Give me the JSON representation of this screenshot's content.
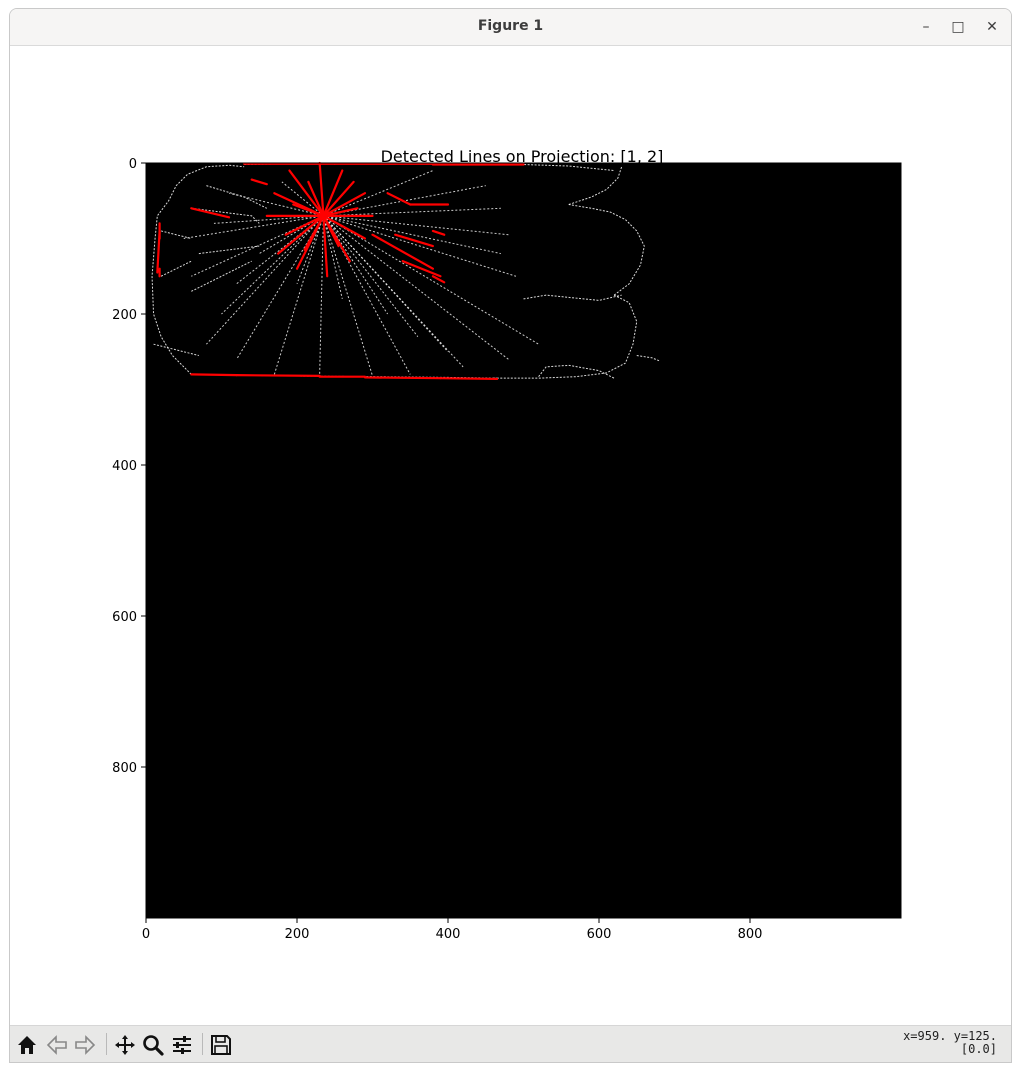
{
  "window": {
    "title": "Figure 1",
    "controls": {
      "minimize": "–",
      "maximize": "□",
      "close": "✕"
    }
  },
  "toolbar": {
    "buttons": [
      {
        "name": "home",
        "icon": "home-icon"
      },
      {
        "name": "back",
        "icon": "back-arrow-icon"
      },
      {
        "name": "forward",
        "icon": "forward-arrow-icon"
      },
      {
        "name": "pan",
        "icon": "pan-move-icon"
      },
      {
        "name": "zoom",
        "icon": "zoom-magnifier-icon"
      },
      {
        "name": "configure-subplots",
        "icon": "sliders-icon"
      },
      {
        "name": "save",
        "icon": "save-floppy-icon"
      }
    ],
    "coords_line1": "x=959. y=125.",
    "coords_line2": "[0.0]"
  },
  "chart_data": {
    "type": "image",
    "title": "Detected Lines on Projection: [1, 2]",
    "xlim": [
      0,
      1000
    ],
    "ylim": [
      1000,
      0
    ],
    "xticks": [
      "0",
      "200",
      "400",
      "600",
      "800"
    ],
    "yticks": [
      "0",
      "200",
      "400",
      "600",
      "800"
    ],
    "xtick_values": [
      0,
      200,
      400,
      600,
      800
    ],
    "ytick_values": [
      0,
      200,
      400,
      600,
      800
    ],
    "background_color": "#000000",
    "edge_color": "#ffffff",
    "line_color": "#ff0000",
    "edge_polylines": [
      [
        [
          60,
          280
        ],
        [
          50,
          270
        ],
        [
          35,
          255
        ],
        [
          20,
          230
        ],
        [
          10,
          200
        ],
        [
          8,
          150
        ],
        [
          12,
          100
        ],
        [
          15,
          70
        ],
        [
          30,
          50
        ],
        [
          40,
          30
        ],
        [
          55,
          15
        ],
        [
          80,
          5
        ],
        [
          110,
          3
        ],
        [
          130,
          5
        ]
      ],
      [
        [
          60,
          280
        ],
        [
          180,
          282
        ],
        [
          300,
          283
        ],
        [
          400,
          284
        ],
        [
          465,
          285
        ]
      ],
      [
        [
          130,
          2
        ],
        [
          250,
          0
        ],
        [
          380,
          0
        ],
        [
          500,
          2
        ],
        [
          560,
          4
        ],
        [
          620,
          10
        ]
      ],
      [
        [
          460,
          285
        ],
        [
          520,
          285
        ],
        [
          570,
          283
        ],
        [
          610,
          278
        ],
        [
          635,
          265
        ],
        [
          645,
          240
        ],
        [
          650,
          210
        ],
        [
          640,
          185
        ],
        [
          620,
          175
        ]
      ],
      [
        [
          620,
          175
        ],
        [
          640,
          160
        ],
        [
          655,
          135
        ],
        [
          660,
          110
        ],
        [
          650,
          90
        ],
        [
          635,
          75
        ],
        [
          615,
          65
        ],
        [
          590,
          60
        ],
        [
          560,
          55
        ]
      ],
      [
        [
          560,
          55
        ],
        [
          590,
          45
        ],
        [
          610,
          35
        ],
        [
          625,
          20
        ],
        [
          630,
          5
        ]
      ],
      [
        [
          500,
          180
        ],
        [
          530,
          175
        ],
        [
          560,
          178
        ],
        [
          600,
          182
        ],
        [
          630,
          175
        ]
      ],
      [
        [
          520,
          283
        ],
        [
          530,
          270
        ],
        [
          560,
          268
        ],
        [
          600,
          275
        ],
        [
          620,
          285
        ]
      ],
      [
        [
          650,
          255
        ],
        [
          670,
          258
        ],
        [
          680,
          262
        ]
      ],
      [
        [
          10,
          240
        ],
        [
          30,
          245
        ],
        [
          50,
          250
        ],
        [
          70,
          255
        ]
      ],
      [
        [
          60,
          60
        ],
        [
          100,
          65
        ],
        [
          140,
          70
        ],
        [
          150,
          80
        ]
      ],
      [
        [
          70,
          120
        ],
        [
          110,
          115
        ],
        [
          150,
          110
        ]
      ],
      [
        [
          60,
          170
        ],
        [
          100,
          150
        ],
        [
          140,
          130
        ]
      ],
      [
        [
          80,
          30
        ],
        [
          130,
          45
        ],
        [
          160,
          60
        ]
      ],
      [
        [
          20,
          90
        ],
        [
          40,
          95
        ],
        [
          60,
          100
        ]
      ],
      [
        [
          20,
          150
        ],
        [
          40,
          140
        ],
        [
          60,
          130
        ]
      ]
    ],
    "edge_rays_from": [
      235,
      70
    ],
    "edge_rays_to": [
      [
        120,
        260
      ],
      [
        170,
        280
      ],
      [
        230,
        280
      ],
      [
        300,
        282
      ],
      [
        350,
        280
      ],
      [
        420,
        270
      ],
      [
        480,
        260
      ],
      [
        520,
        240
      ],
      [
        490,
        150
      ],
      [
        470,
        120
      ],
      [
        480,
        95
      ],
      [
        470,
        60
      ],
      [
        450,
        30
      ],
      [
        380,
        10
      ],
      [
        150,
        120
      ],
      [
        120,
        160
      ],
      [
        100,
        200
      ],
      [
        80,
        240
      ],
      [
        60,
        150
      ],
      [
        50,
        100
      ],
      [
        90,
        80
      ],
      [
        110,
        40
      ],
      [
        180,
        25
      ],
      [
        200,
        160
      ],
      [
        260,
        180
      ],
      [
        320,
        200
      ],
      [
        360,
        230
      ],
      [
        400,
        250
      ]
    ],
    "red_segments": [
      [
        [
          60,
          280
        ],
        [
          120,
          281
        ]
      ],
      [
        [
          120,
          281
        ],
        [
          230,
          282
        ]
      ],
      [
        [
          230,
          283
        ],
        [
          290,
          283
        ]
      ],
      [
        [
          290,
          284
        ],
        [
          390,
          285
        ]
      ],
      [
        [
          390,
          285
        ],
        [
          465,
          286
        ]
      ],
      [
        [
          130,
          1
        ],
        [
          250,
          1
        ]
      ],
      [
        [
          250,
          1
        ],
        [
          380,
          1
        ]
      ],
      [
        [
          380,
          2
        ],
        [
          500,
          2
        ]
      ],
      [
        [
          18,
          140
        ],
        [
          18,
          150
        ]
      ],
      [
        [
          18,
          80
        ],
        [
          18,
          100
        ]
      ],
      [
        [
          15,
          145
        ],
        [
          18,
          90
        ]
      ],
      [
        [
          60,
          60
        ],
        [
          110,
          72
        ]
      ],
      [
        [
          140,
          22
        ],
        [
          160,
          28
        ]
      ],
      [
        [
          320,
          40
        ],
        [
          350,
          55
        ]
      ],
      [
        [
          350,
          55
        ],
        [
          400,
          55
        ]
      ],
      [
        [
          380,
          90
        ],
        [
          395,
          95
        ]
      ],
      [
        [
          330,
          95
        ],
        [
          380,
          110
        ]
      ],
      [
        [
          340,
          130
        ],
        [
          390,
          150
        ]
      ],
      [
        [
          380,
          150
        ],
        [
          395,
          158
        ]
      ],
      [
        [
          300,
          95
        ],
        [
          380,
          140
        ]
      ],
      [
        [
          235,
          70
        ],
        [
          170,
          40
        ]
      ],
      [
        [
          235,
          70
        ],
        [
          175,
          120
        ]
      ],
      [
        [
          235,
          70
        ],
        [
          200,
          140
        ]
      ],
      [
        [
          235,
          70
        ],
        [
          240,
          150
        ]
      ],
      [
        [
          235,
          70
        ],
        [
          270,
          130
        ]
      ],
      [
        [
          235,
          70
        ],
        [
          290,
          100
        ]
      ],
      [
        [
          235,
          70
        ],
        [
          300,
          70
        ]
      ],
      [
        [
          235,
          70
        ],
        [
          290,
          40
        ]
      ],
      [
        [
          235,
          70
        ],
        [
          260,
          10
        ]
      ],
      [
        [
          235,
          70
        ],
        [
          230,
          0
        ]
      ],
      [
        [
          235,
          70
        ],
        [
          190,
          10
        ]
      ],
      [
        [
          235,
          70
        ],
        [
          160,
          70
        ]
      ],
      [
        [
          235,
          70
        ],
        [
          185,
          95
        ]
      ],
      [
        [
          235,
          70
        ],
        [
          210,
          115
        ]
      ],
      [
        [
          235,
          70
        ],
        [
          255,
          110
        ]
      ],
      [
        [
          235,
          70
        ],
        [
          280,
          60
        ]
      ],
      [
        [
          235,
          70
        ],
        [
          275,
          25
        ]
      ],
      [
        [
          235,
          70
        ],
        [
          215,
          25
        ]
      ],
      [
        [
          235,
          70
        ],
        [
          195,
          55
        ]
      ]
    ]
  }
}
